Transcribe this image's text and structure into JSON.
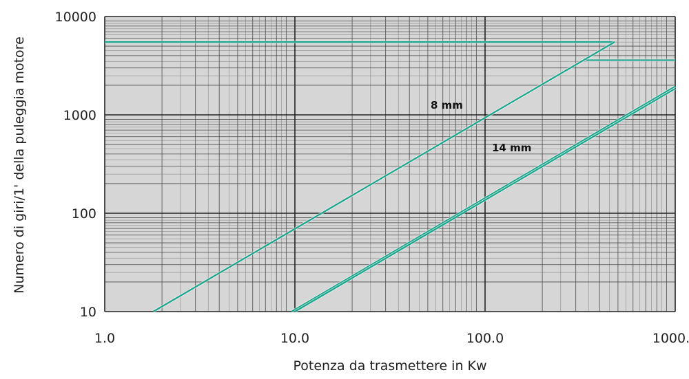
{
  "chart_data": {
    "type": "line",
    "title": "",
    "xlabel": "Potenza da trasmettere in Kw",
    "ylabel": "Numero di giri/1' della puleggia motore",
    "xscale": "log",
    "yscale": "log",
    "xlim": [
      1,
      1000
    ],
    "ylim": [
      10,
      10000
    ],
    "grid": true,
    "x_tick_labels": [
      "1.0",
      "10.0",
      "100.0",
      "1000.0"
    ],
    "y_tick_labels": [
      "10",
      "100",
      "1000",
      "10000"
    ],
    "line_color": "#1aa58c",
    "plot_background": "#d6d6d6",
    "series": [
      {
        "name": "8 mm",
        "segments": [
          {
            "x": [
              1.0,
              480
            ],
            "y": [
              5500,
              5500
            ]
          },
          {
            "x": [
              1.8,
              480
            ],
            "y": [
              10,
              5500
            ]
          }
        ]
      },
      {
        "name": "",
        "segments": [
          {
            "x": [
              340,
              1000
            ],
            "y": [
              3600,
              3600
            ]
          }
        ]
      },
      {
        "name": "14 mm",
        "segments": [
          {
            "x": [
              9.6,
              1000
            ],
            "y": [
              10,
              1950
            ]
          },
          {
            "x": [
              10.0,
              1000
            ],
            "y": [
              10,
              1850
            ]
          }
        ]
      }
    ]
  }
}
